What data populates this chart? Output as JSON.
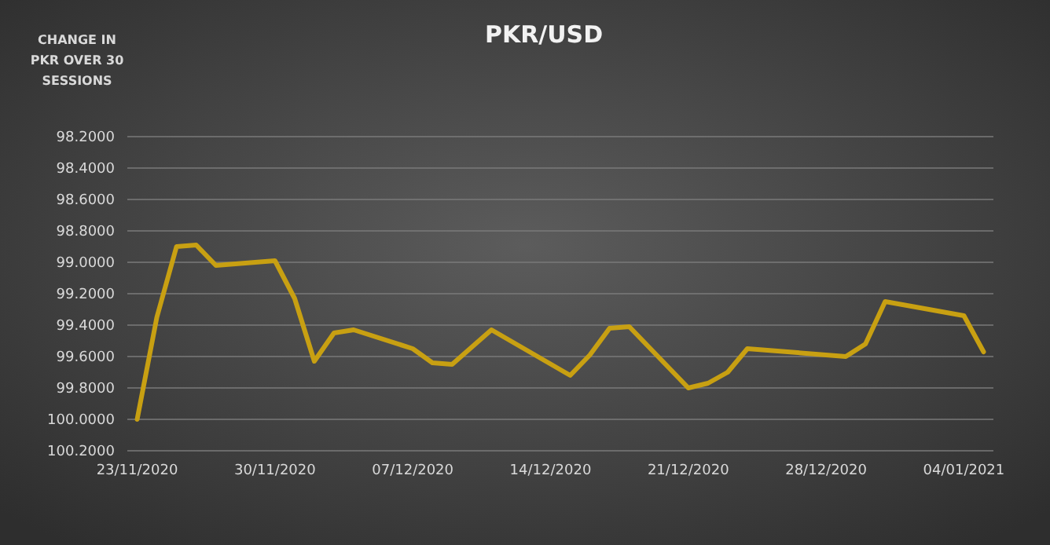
{
  "chart_data": {
    "type": "line",
    "title": "PKR/USD",
    "ylabel": "CHANGE IN PKR OVER 30 SESSIONS",
    "x": [
      "2020-11-23",
      "2020-11-24",
      "2020-11-25",
      "2020-11-26",
      "2020-11-27",
      "2020-11-30",
      "2020-12-01",
      "2020-12-02",
      "2020-12-03",
      "2020-12-04",
      "2020-12-07",
      "2020-12-08",
      "2020-12-09",
      "2020-12-11",
      "2020-12-15",
      "2020-12-16",
      "2020-12-17",
      "2020-12-18",
      "2020-12-21",
      "2020-12-22",
      "2020-12-23",
      "2020-12-24",
      "2020-12-29",
      "2020-12-30",
      "2020-12-31",
      "2021-01-04",
      "2021-01-05"
    ],
    "series": [
      {
        "color": "#c8a012",
        "values": [
          100.0,
          99.35,
          98.9,
          98.89,
          99.02,
          98.99,
          99.23,
          99.63,
          99.45,
          99.43,
          99.55,
          99.64,
          99.65,
          99.43,
          99.72,
          99.59,
          99.42,
          99.41,
          99.8,
          99.77,
          99.7,
          99.55,
          99.6,
          99.52,
          99.25,
          99.34,
          99.57
        ]
      }
    ],
    "xlim": [
      "2020-11-22T12:00",
      "2021-01-05T12:00"
    ],
    "xticks": [
      {
        "value": "2020-11-23",
        "label": "23/11/2020"
      },
      {
        "value": "2020-11-30",
        "label": "30/11/2020"
      },
      {
        "value": "2020-12-07",
        "label": "07/12/2020"
      },
      {
        "value": "2020-12-14",
        "label": "14/12/2020"
      },
      {
        "value": "2020-12-21",
        "label": "21/12/2020"
      },
      {
        "value": "2020-12-28",
        "label": "28/12/2020"
      },
      {
        "value": "2021-01-04",
        "label": "04/01/2021"
      }
    ],
    "ylim": [
      100.2,
      98.2
    ],
    "yticks": [
      {
        "value": 98.2,
        "label": "98.2000"
      },
      {
        "value": 98.4,
        "label": "98.4000"
      },
      {
        "value": 98.6,
        "label": "98.6000"
      },
      {
        "value": 98.8,
        "label": "98.8000"
      },
      {
        "value": 99.0,
        "label": "99.0000"
      },
      {
        "value": 99.2,
        "label": "99.2000"
      },
      {
        "value": 99.4,
        "label": "99.4000"
      },
      {
        "value": 99.6,
        "label": "99.6000"
      },
      {
        "value": 99.8,
        "label": "99.8000"
      },
      {
        "value": 100.0,
        "label": "100.0000"
      },
      {
        "value": 100.2,
        "label": "100.2000"
      }
    ],
    "grid": "y",
    "marker": "none",
    "line_style": "solid"
  }
}
